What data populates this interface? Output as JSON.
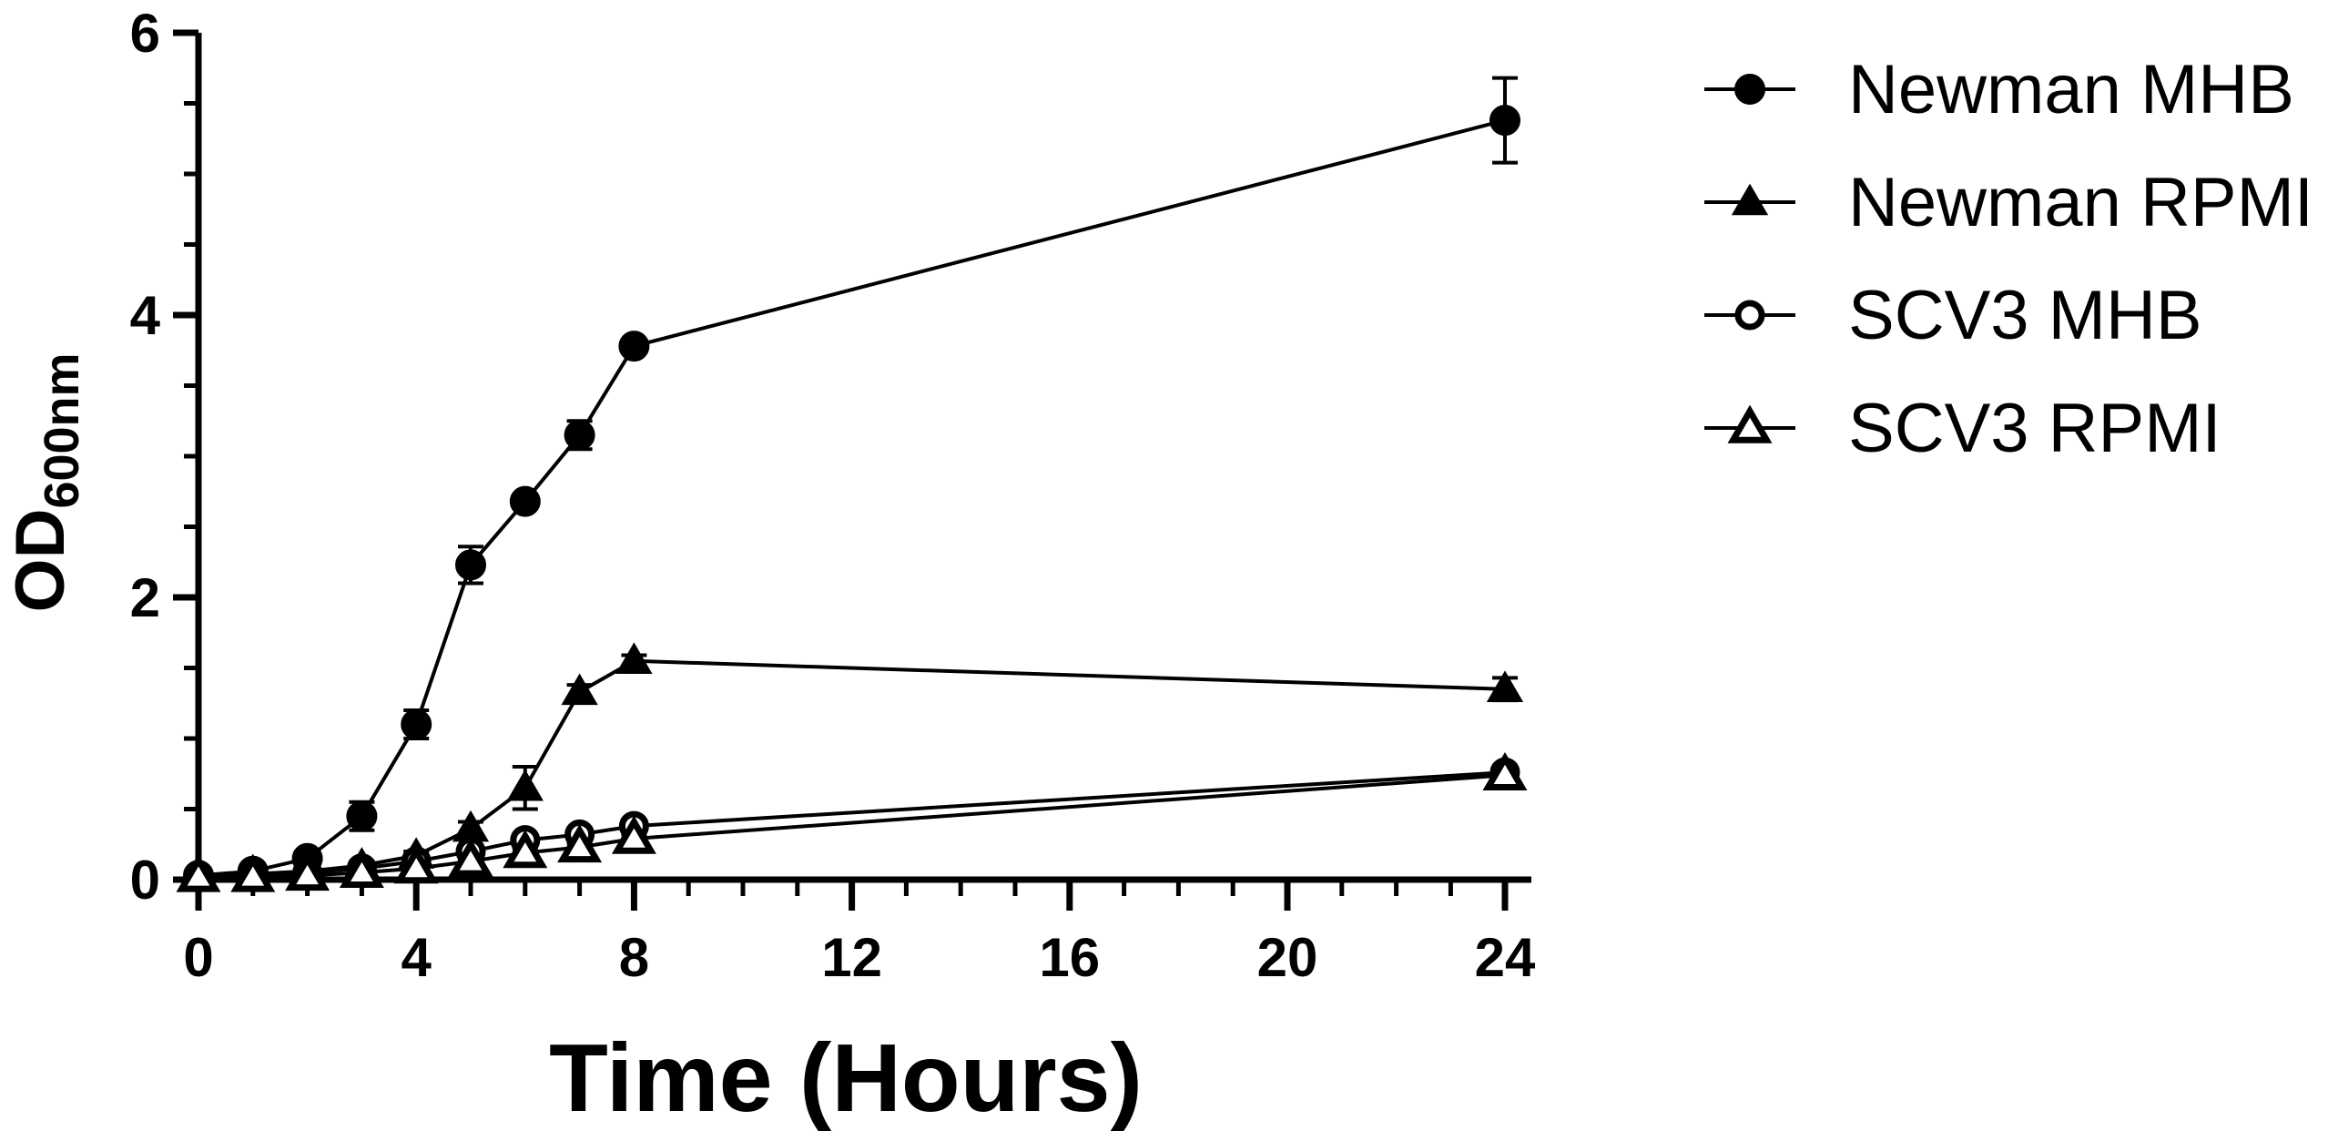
{
  "chart_data": {
    "type": "line",
    "xlabel": "Time (Hours)",
    "ylabel": {
      "main": "OD",
      "subscript": "600nm"
    },
    "x_ticks": [
      "0",
      "4",
      "8",
      "12",
      "16",
      "20",
      "24"
    ],
    "y_ticks": [
      "0",
      "2",
      "4",
      "6"
    ],
    "xlim": [
      0,
      24
    ],
    "ylim": [
      0,
      6
    ],
    "x_axis_break": "between 8 and 24 (segment compressed)",
    "grid": false,
    "legend_position": "right",
    "x": [
      0,
      1,
      2,
      3,
      4,
      5,
      6,
      7,
      8,
      24
    ],
    "series": [
      {
        "name": "Newman MHB",
        "marker": "filled-circle",
        "y": [
          0.03,
          0.06,
          0.15,
          0.45,
          1.1,
          2.23,
          2.68,
          3.15,
          3.78,
          5.38
        ],
        "error": [
          0.02,
          0.03,
          0.04,
          0.1,
          0.1,
          0.13,
          0.04,
          0.1,
          0.04,
          0.3
        ]
      },
      {
        "name": "Newman RPMI",
        "marker": "filled-triangle",
        "y": [
          0.02,
          0.04,
          0.06,
          0.1,
          0.17,
          0.36,
          0.65,
          1.33,
          1.55,
          1.35
        ],
        "error": [
          0.01,
          0.02,
          0.02,
          0.03,
          0.03,
          0.05,
          0.15,
          0.05,
          0.04,
          0.08
        ]
      },
      {
        "name": "SCV3 MHB",
        "marker": "open-circle",
        "y": [
          0.02,
          0.03,
          0.05,
          0.08,
          0.13,
          0.2,
          0.28,
          0.32,
          0.38,
          0.76
        ],
        "error": [
          0.01,
          0.01,
          0.02,
          0.02,
          0.02,
          0.03,
          0.03,
          0.03,
          0.03,
          0.05
        ]
      },
      {
        "name": "SCV3 RPMI",
        "marker": "open-triangle",
        "y": [
          0.02,
          0.02,
          0.03,
          0.05,
          0.08,
          0.13,
          0.19,
          0.23,
          0.29,
          0.74
        ],
        "error": [
          0.01,
          0.01,
          0.01,
          0.02,
          0.02,
          0.02,
          0.03,
          0.03,
          0.03,
          0.05
        ]
      }
    ]
  }
}
